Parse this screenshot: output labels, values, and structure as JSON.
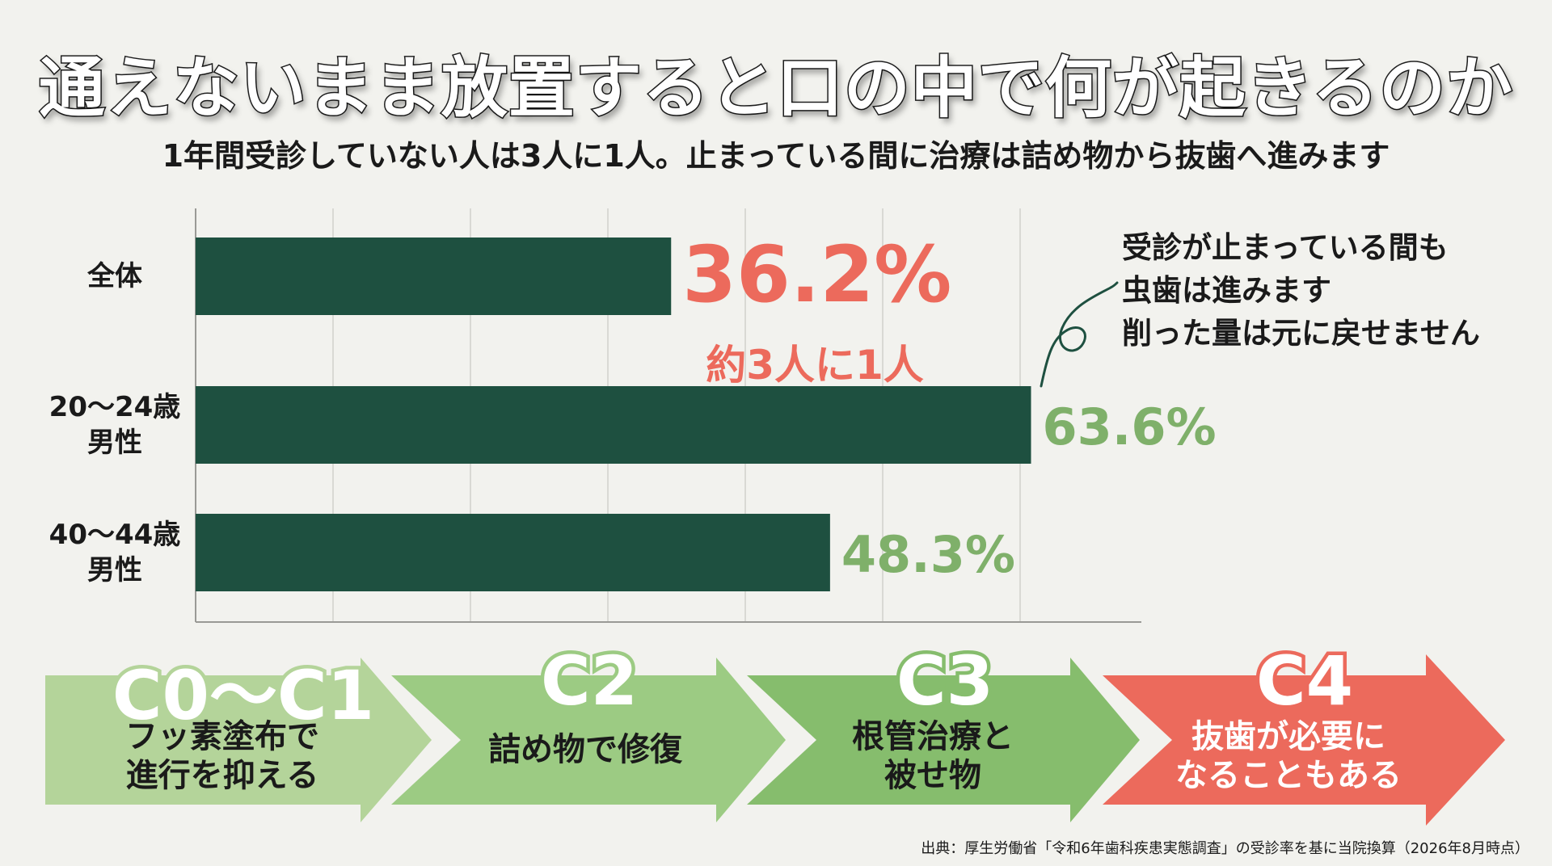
{
  "title": "通えないまま放置すると口の中で何が起きるのか",
  "subtitle": "1年間受診していない人は3人に1人。止まっている間に治療は詰め物から抜歯へ進みます",
  "colors": {
    "bar": "#1e5040",
    "highlight": "#ec6a5c",
    "value_green": "#7fb06a",
    "stage_c4": "#ec6a5c"
  },
  "chart_data": {
    "type": "bar",
    "orientation": "horizontal",
    "categories": [
      {
        "lines": [
          "全体"
        ]
      },
      {
        "lines": [
          "20〜24歳",
          "男性"
        ]
      },
      {
        "lines": [
          "40〜44歳",
          "男性"
        ]
      }
    ],
    "values": [
      36.2,
      63.6,
      48.3
    ],
    "value_labels": [
      "36.2%",
      "63.6%",
      "48.3%"
    ],
    "xlim": [
      0,
      72
    ],
    "grid": true,
    "annotation": "約3人に1人"
  },
  "callout": {
    "lines": [
      "受診が止まっている間も",
      "虫歯は進みます",
      "削った量は元に戻せません"
    ]
  },
  "stages": [
    {
      "code": "C0〜C1",
      "lines": [
        "フッ素塗布で",
        "進行を抑える"
      ]
    },
    {
      "code": "C2",
      "lines": [
        "詰め物で修復"
      ]
    },
    {
      "code": "C3",
      "lines": [
        "根管治療と",
        "被せ物"
      ]
    },
    {
      "code": "C4",
      "lines": [
        "抜歯が必要に",
        "なることもある"
      ]
    }
  ],
  "source": "出典：厚生労働省「令和6年歯科疾患実態調査」の受診率を基に当院換算（2026年8月時点）"
}
